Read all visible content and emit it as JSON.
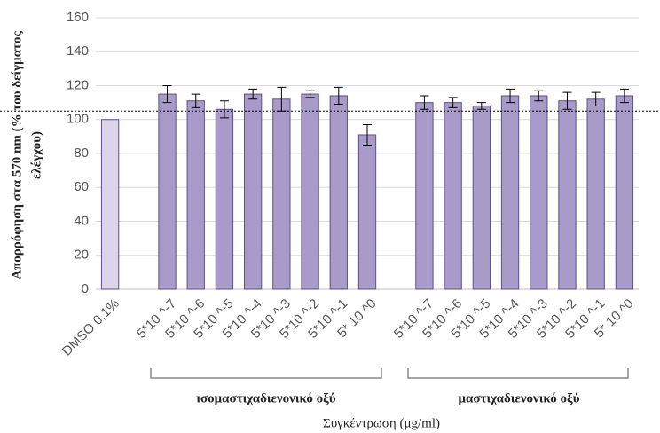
{
  "chart_data": {
    "type": "bar",
    "categories": [
      "DMSO 0,1%",
      null,
      "5*10 ^-7",
      "5*10 ^-6",
      "5*10 ^-5",
      "5*10 ^-4",
      "5*10 ^-3",
      "5*10 ^-2",
      "5*10 ^-1",
      "5* 10 ^0",
      null,
      "5*10 ^-7",
      "5*10 ^-6",
      "5*10 ^-5",
      "5*10 ^-4",
      "5*10 ^-3",
      "5*10 ^-2",
      "5*10 ^-1",
      "5* 10 ^0"
    ],
    "values": [
      100,
      null,
      115,
      111,
      106,
      115,
      112,
      115,
      114,
      91,
      null,
      110,
      110,
      108,
      114,
      114,
      111,
      112,
      114
    ],
    "errors": [
      null,
      null,
      5,
      4,
      5,
      3,
      7,
      2,
      5,
      6,
      null,
      4,
      3,
      2,
      4,
      3,
      5,
      4,
      4
    ],
    "colors": [
      "#dcd5ea",
      null,
      "#a89bc9",
      "#a89bc9",
      "#a89bc9",
      "#a89bc9",
      "#a89bc9",
      "#a89bc9",
      "#a89bc9",
      "#a89bc9",
      null,
      "#a89bc9",
      "#a89bc9",
      "#a89bc9",
      "#a89bc9",
      "#a89bc9",
      "#a89bc9",
      "#a89bc9",
      "#a89bc9"
    ],
    "edge_color": "#5e4f86",
    "ylim": [
      0,
      160
    ],
    "yticks": [
      0,
      20,
      40,
      60,
      80,
      100,
      120,
      140,
      160
    ],
    "grid": true,
    "reference_line": 105,
    "ylabel": [
      "Απορρόφηση στα 570 nm (% του δείγματος",
      "ελέγχου)"
    ],
    "xlabel": "Συγκέντρωση  (μg/ml)",
    "group_labels": [
      "ισομαστιχαδιενονικό οξύ",
      "μαστιχαδιενονικό οξύ"
    ]
  }
}
